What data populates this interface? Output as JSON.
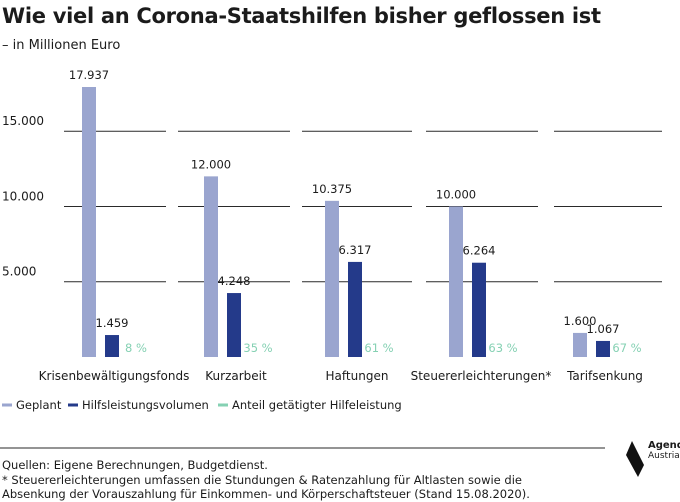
{
  "title": "Wie viel an Corona-Staatshilfen bisher geflossen ist",
  "subtitle": "– in Millionen Euro",
  "chart_data": {
    "type": "bar",
    "categories": [
      "Krisenbewältigungsfonds",
      "Kurzarbeit",
      "Haftungen",
      "Steuererleichterungen*",
      "Tarifsenkung"
    ],
    "series": [
      {
        "name": "Geplant",
        "values": [
          17937,
          12000,
          10375,
          10000,
          1600
        ],
        "labels": [
          "17.937",
          "12.000",
          "10.375",
          "10.000",
          "1.600"
        ],
        "color": "#9aa5cf"
      },
      {
        "name": "Hilfsleistungsvolumen",
        "values": [
          1459,
          4248,
          6317,
          6264,
          1067
        ],
        "labels": [
          "1.459",
          "4.248",
          "6.317",
          "6.264",
          "1.067"
        ],
        "color": "#243a8a"
      },
      {
        "name": "Anteil getätigter Hilfeleistung",
        "values": [
          8,
          35,
          61,
          63,
          67
        ],
        "labels": [
          "8 %",
          "35 %",
          "61 %",
          "63 %",
          "67 %"
        ],
        "color": "#85d1b3"
      }
    ],
    "yticks": [
      {
        "value": 5000,
        "label": "5.000"
      },
      {
        "value": 10000,
        "label": "10.000"
      },
      {
        "value": 15000,
        "label": "15.000"
      }
    ],
    "ylim": [
      0,
      18000
    ],
    "grid": true,
    "legend": "bottom"
  },
  "sources": [
    "Quellen: Eigene Berechnungen, Budgetdienst.",
    "* Steuererleichterungen umfassen die Stundungen & Ratenzahlung für Altlasten sowie die",
    "Absenkung der Vorauszahlung für Einkommen- und Körperschaftsteuer (Stand 15.08.2020)."
  ],
  "logo": {
    "line1": "Agenda",
    "line2": "Austria"
  }
}
